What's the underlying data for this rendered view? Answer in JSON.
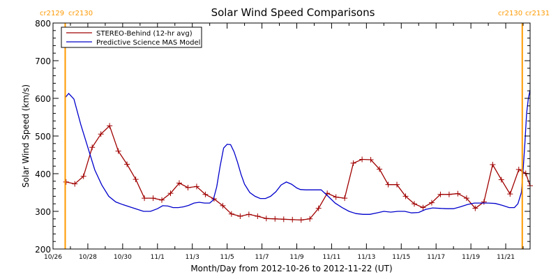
{
  "chart_data": {
    "type": "line",
    "title": "Solar Wind Speed Comparisons",
    "xlabel": "Month/Day from 2012-10-26 to 2012-11-22 (UT)",
    "ylabel": "Solar Wind Speed (km/s)",
    "xlim": [
      0,
      27.4
    ],
    "ylim": [
      200,
      800
    ],
    "y_ticks": [
      200,
      300,
      400,
      500,
      600,
      700,
      800
    ],
    "x_ticks": [
      {
        "day": 0,
        "label": "10/26"
      },
      {
        "day": 2,
        "label": "10/28"
      },
      {
        "day": 4,
        "label": "10/30"
      },
      {
        "day": 6,
        "label": "11/1"
      },
      {
        "day": 8,
        "label": "11/3"
      },
      {
        "day": 10,
        "label": "11/5"
      },
      {
        "day": 12,
        "label": "11/7"
      },
      {
        "day": 14,
        "label": "11/9"
      },
      {
        "day": 16,
        "label": "11/11"
      },
      {
        "day": 18,
        "label": "11/13"
      },
      {
        "day": 20,
        "label": "11/15"
      },
      {
        "day": 22,
        "label": "11/17"
      },
      {
        "day": 24,
        "label": "11/19"
      },
      {
        "day": 26,
        "label": "11/21"
      }
    ],
    "grid": false,
    "legend_position": "top-left",
    "rotation_markers": [
      {
        "day": 0.7,
        "left_label": "cr2129",
        "right_label": "cr2130",
        "color": "#ff9900"
      },
      {
        "day": 26.95,
        "left_label": "cr2130",
        "right_label": "cr2131",
        "color": "#ff9900"
      }
    ],
    "series": [
      {
        "name": "STEREO-Behind (12-hr avg)",
        "color": "#a00000",
        "marker": "plus",
        "x": [
          0.75,
          1.25,
          1.75,
          2.25,
          2.75,
          3.25,
          3.75,
          4.25,
          4.75,
          5.25,
          5.75,
          6.25,
          6.75,
          7.25,
          7.75,
          8.25,
          8.75,
          9.25,
          9.75,
          10.25,
          10.75,
          11.25,
          11.75,
          12.25,
          12.75,
          13.25,
          13.75,
          14.25,
          14.75,
          15.25,
          15.75,
          16.25,
          16.75,
          17.25,
          17.75,
          18.25,
          18.75,
          19.25,
          19.75,
          20.25,
          20.75,
          21.25,
          21.75,
          22.25,
          22.75,
          23.25,
          23.75,
          24.25,
          24.75,
          25.25,
          25.75,
          26.25,
          26.75,
          27.15,
          27.4
        ],
        "y": [
          378,
          373,
          393,
          470,
          505,
          527,
          460,
          425,
          385,
          335,
          335,
          330,
          348,
          375,
          363,
          366,
          345,
          333,
          315,
          293,
          287,
          292,
          287,
          281,
          280,
          279,
          278,
          277,
          280,
          308,
          348,
          338,
          335,
          428,
          438,
          437,
          412,
          371,
          371,
          340,
          320,
          310,
          323,
          345,
          345,
          347,
          335,
          308,
          325,
          424,
          384,
          346,
          411,
          401,
          368
        ]
      },
      {
        "name": "Predictive Science MAS Model",
        "color": "#0000cc",
        "marker": "none",
        "x": [
          0.7,
          0.9,
          1.2,
          1.6,
          2.0,
          2.4,
          2.8,
          3.2,
          3.6,
          4.0,
          4.4,
          4.8,
          5.2,
          5.6,
          6.0,
          6.3,
          6.6,
          6.9,
          7.2,
          7.5,
          7.8,
          8.1,
          8.4,
          8.7,
          9.0,
          9.2,
          9.4,
          9.6,
          9.8,
          10.0,
          10.2,
          10.4,
          10.6,
          10.8,
          11.0,
          11.3,
          11.6,
          11.9,
          12.2,
          12.5,
          12.8,
          13.1,
          13.4,
          13.7,
          14.0,
          14.2,
          14.5,
          14.8,
          15.1,
          15.4,
          15.8,
          16.2,
          16.6,
          17.0,
          17.4,
          17.8,
          18.2,
          18.6,
          19.0,
          19.4,
          19.8,
          20.2,
          20.6,
          21.0,
          21.4,
          21.8,
          22.2,
          22.6,
          23.0,
          23.4,
          23.8,
          24.2,
          24.6,
          25.0,
          25.4,
          25.8,
          26.2,
          26.5,
          26.7,
          26.9,
          27.0,
          27.1,
          27.2,
          27.3,
          27.4
        ],
        "y": [
          602,
          613,
          598,
          530,
          470,
          410,
          370,
          340,
          325,
          318,
          312,
          306,
          300,
          300,
          307,
          315,
          314,
          310,
          310,
          312,
          316,
          322,
          324,
          322,
          322,
          330,
          365,
          420,
          468,
          478,
          477,
          458,
          430,
          398,
          372,
          350,
          340,
          334,
          334,
          340,
          352,
          370,
          378,
          372,
          362,
          358,
          357,
          357,
          357,
          357,
          340,
          322,
          310,
          300,
          294,
          292,
          292,
          296,
          300,
          298,
          300,
          300,
          296,
          297,
          305,
          309,
          308,
          307,
          307,
          312,
          318,
          322,
          322,
          322,
          321,
          316,
          310,
          310,
          320,
          350,
          410,
          480,
          560,
          600,
          622
        ]
      }
    ]
  }
}
